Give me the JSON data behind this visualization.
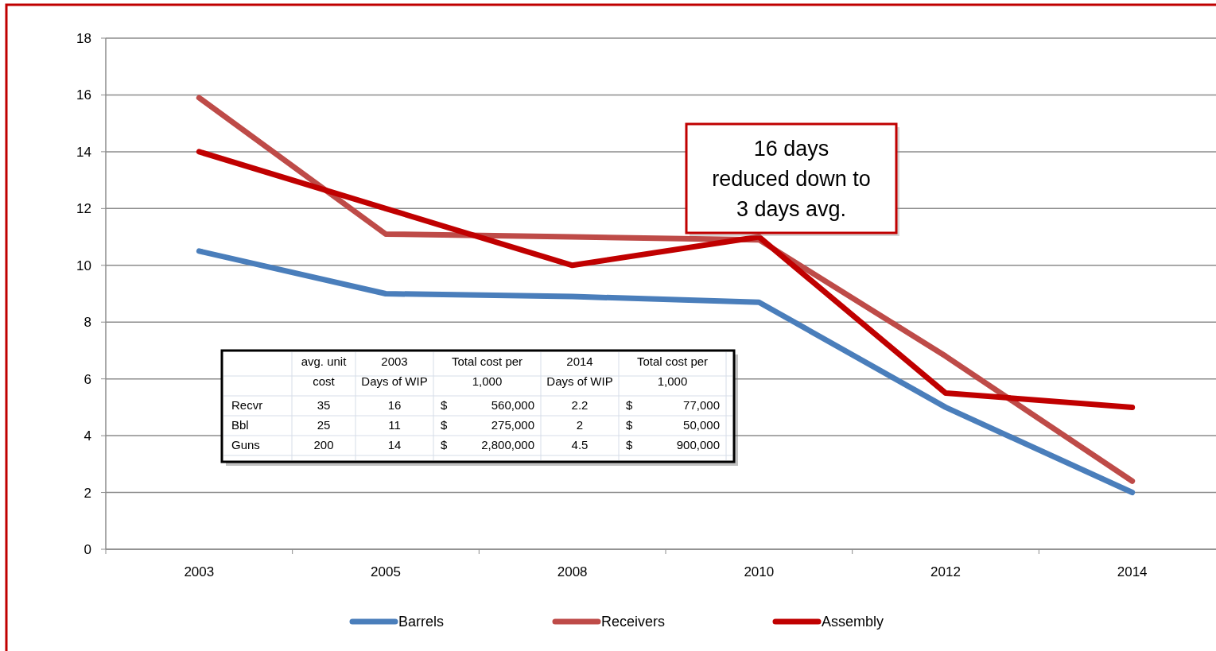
{
  "chart_data": [
    {
      "type": "line",
      "categories": [
        "2003",
        "2005",
        "2008",
        "2010",
        "2012",
        "2014"
      ],
      "series": [
        {
          "name": "Barrels",
          "color": "#4a7ebb",
          "values": [
            10.5,
            9.0,
            8.9,
            8.7,
            5.0,
            2.0
          ]
        },
        {
          "name": "Receivers",
          "color": "#be4b48",
          "values": [
            15.9,
            11.1,
            11.0,
            10.9,
            6.8,
            2.4
          ]
        },
        {
          "name": "Assembly",
          "color": "#c00000",
          "values": [
            14,
            12,
            10,
            11,
            5.5,
            5.0
          ]
        }
      ],
      "ylim": [
        0,
        18
      ],
      "yticks": [
        0,
        2,
        4,
        6,
        8,
        10,
        12,
        14,
        16,
        18
      ],
      "grid": "y",
      "legend": "bottom",
      "marker": "none",
      "annotations": [
        "16 days\nreduced down to\n3 days avg."
      ]
    },
    {
      "type": "other",
      "categories": [
        "avg. unit\ncost",
        "2003\nDays of WIP",
        "Total cost per\n1,000",
        "2014\nDays of WIP",
        "Total cost per\n1,000"
      ],
      "y_categories": [
        "Recvr",
        "Bbl",
        "Guns"
      ],
      "cell_labels": [
        [
          "35",
          "16",
          "$ 560,000",
          "2.2",
          "$ 77,000"
        ],
        [
          "25",
          "11",
          "$ 275,000",
          "2",
          "$ 50,000"
        ],
        [
          "200",
          "14",
          "$ 2,800,000",
          "4.5",
          "$ 900,000"
        ]
      ]
    }
  ]
}
